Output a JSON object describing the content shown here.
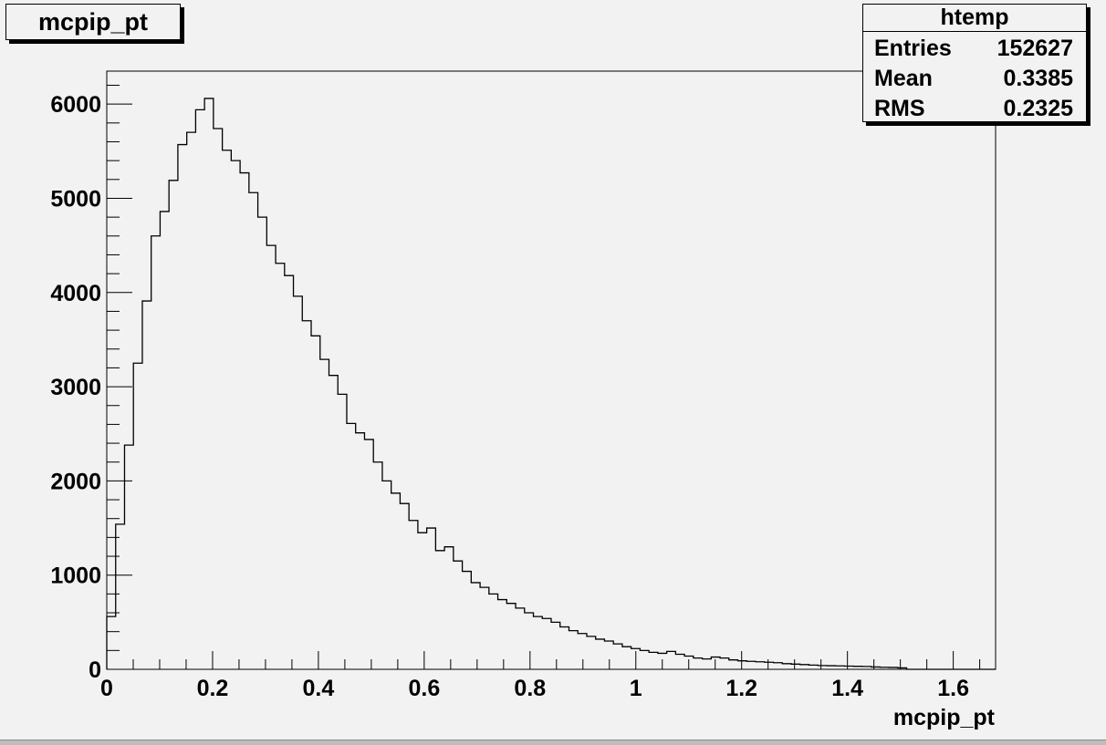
{
  "title_box": {
    "label": "mcpip_pt"
  },
  "stats_box": {
    "title": "htemp",
    "rows": [
      {
        "name": "Entries",
        "value": "152627"
      },
      {
        "name": "Mean",
        "value": "0.3385"
      },
      {
        "name": "RMS",
        "value": "0.2325"
      }
    ]
  },
  "chart_data": {
    "type": "bar",
    "style": "step-histogram",
    "xlabel": "mcpip_pt",
    "ylabel": "",
    "xlim": [
      0,
      1.68
    ],
    "ylim": [
      0,
      6350
    ],
    "bin_width": 0.0168,
    "x_ticks": [
      "0",
      "0.2",
      "0.4",
      "0.6",
      "0.8",
      "1",
      "1.2",
      "1.4",
      "1.6"
    ],
    "y_ticks": [
      "0",
      "1000",
      "2000",
      "3000",
      "4000",
      "5000",
      "6000"
    ],
    "values": [
      560,
      1540,
      2380,
      3250,
      3910,
      4600,
      4860,
      5190,
      5570,
      5700,
      5940,
      6060,
      5740,
      5510,
      5400,
      5270,
      5060,
      4800,
      4500,
      4310,
      4180,
      3960,
      3700,
      3540,
      3290,
      3120,
      2920,
      2610,
      2510,
      2440,
      2200,
      2000,
      1870,
      1760,
      1580,
      1450,
      1500,
      1260,
      1300,
      1150,
      1040,
      920,
      870,
      800,
      740,
      700,
      650,
      600,
      560,
      540,
      500,
      450,
      410,
      380,
      350,
      320,
      300,
      270,
      240,
      220,
      200,
      180,
      170,
      190,
      160,
      140,
      120,
      110,
      130,
      120,
      100,
      90,
      85,
      80,
      75,
      70,
      60,
      55,
      50,
      45,
      40,
      38,
      36,
      34,
      32,
      30,
      25,
      22,
      20,
      15,
      0,
      0,
      0,
      0,
      0,
      0,
      0,
      0,
      0,
      0
    ],
    "grid": false,
    "legend": "none"
  }
}
